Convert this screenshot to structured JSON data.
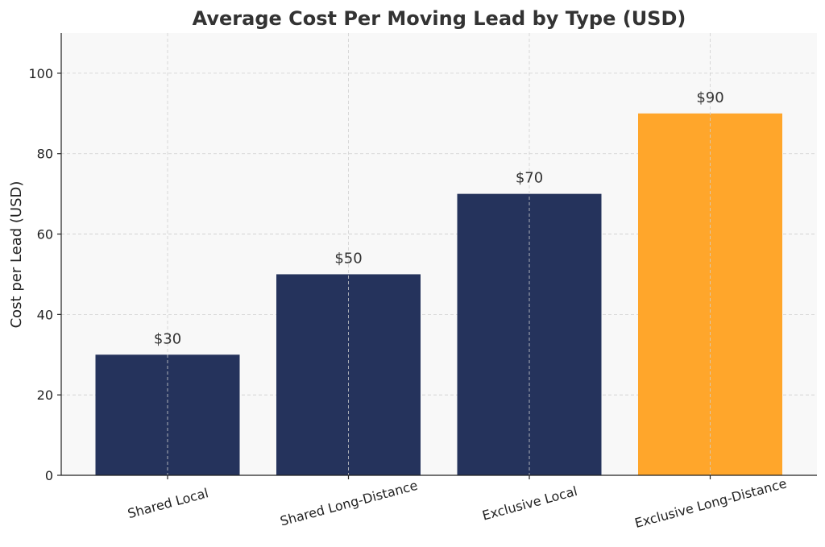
{
  "chart_data": {
    "type": "bar",
    "title": "Average Cost Per Moving Lead by Type (USD)",
    "xlabel": "",
    "ylabel": "Cost per Lead (USD)",
    "categories": [
      "Shared Local",
      "Shared Long-Distance",
      "Exclusive Local",
      "Exclusive Long-Distance"
    ],
    "values": [
      30,
      50,
      70,
      90
    ],
    "data_labels": [
      "$30",
      "$50",
      "$70",
      "$90"
    ],
    "bar_colors": [
      "#25335c",
      "#25335c",
      "#25335c",
      "#ffa62b"
    ],
    "ylim": [
      0,
      110
    ],
    "yticks": [
      0,
      20,
      40,
      60,
      80,
      100
    ],
    "ytick_labels": [
      "0",
      "20",
      "40",
      "60",
      "80",
      "100"
    ],
    "grid": true,
    "plot_background": "#f8f8f8",
    "xtick_rotation_deg": -15
  }
}
